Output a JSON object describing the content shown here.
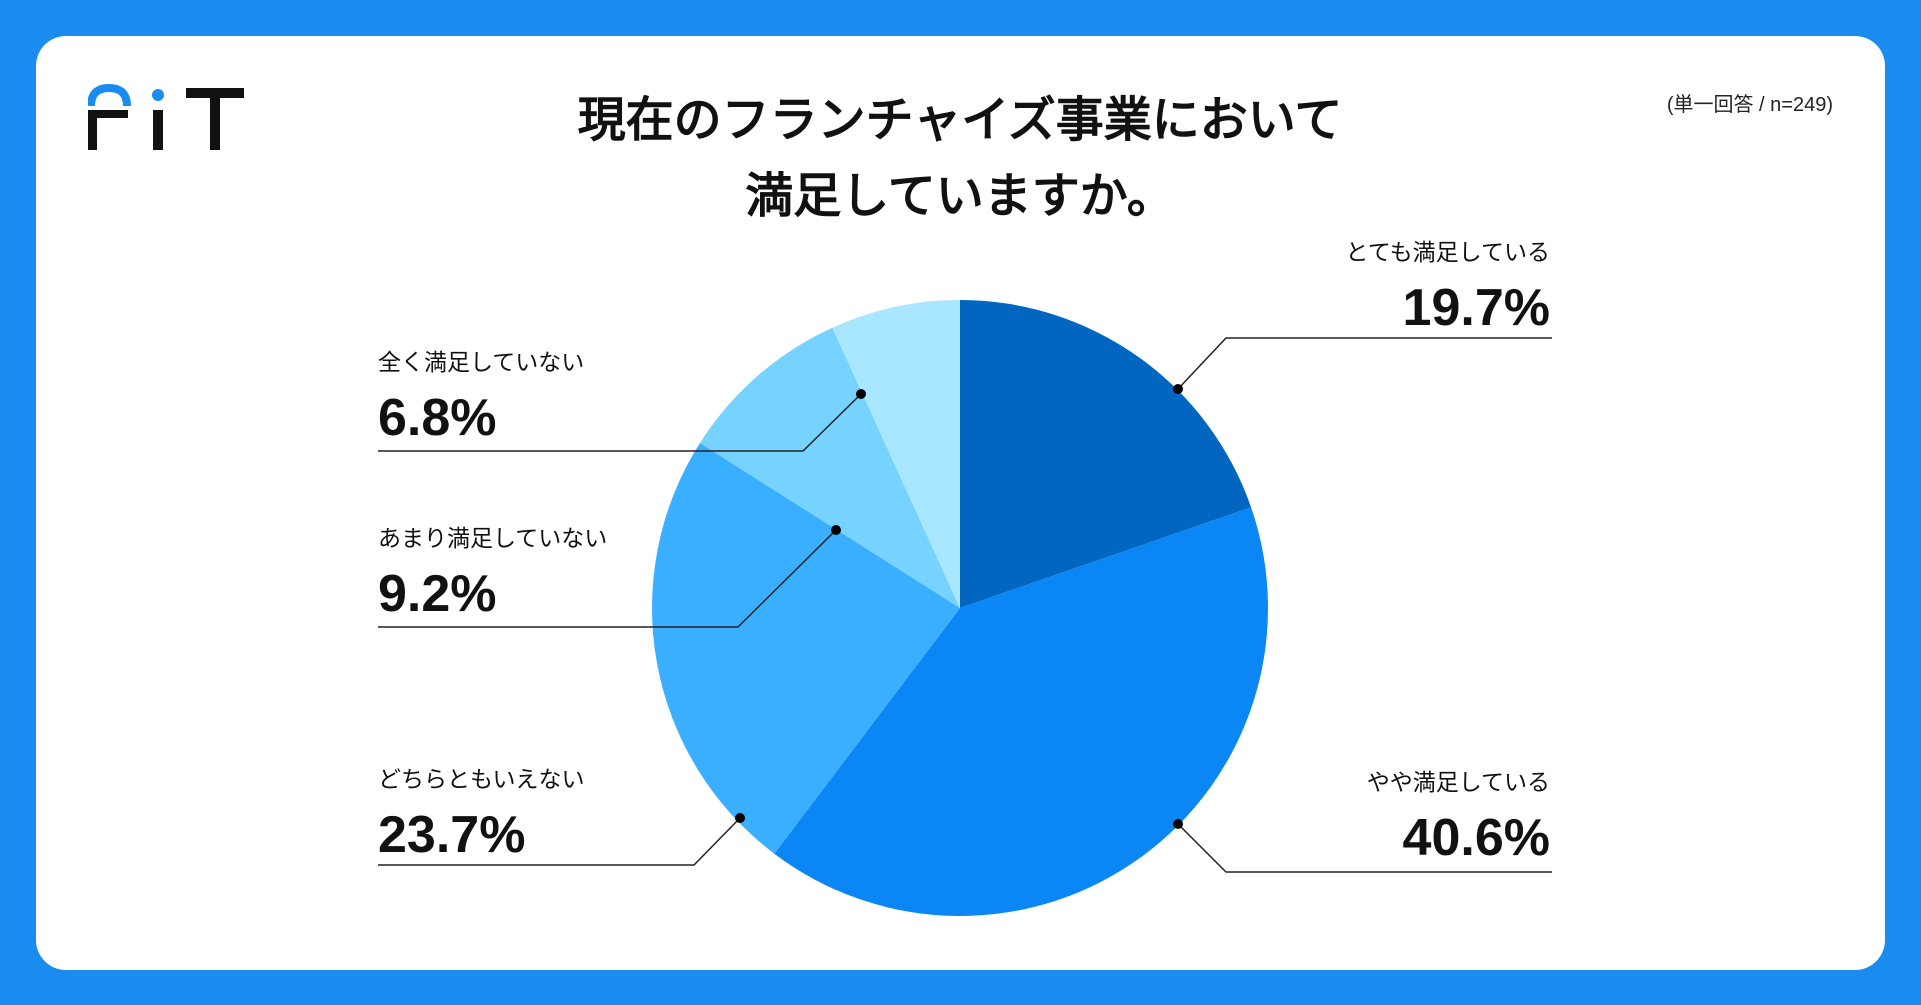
{
  "header": {
    "logo_text": "FiT",
    "title_line1": "現在のフランチャイズ事業において",
    "title_line2": "満足していますか。",
    "note": "(単一回答 / n=249)"
  },
  "colors": {
    "background": "#1a8cf0",
    "card": "#ffffff",
    "leader": "#222222",
    "logo_accent": "#1a8cf0",
    "logo_dark": "#111111"
  },
  "chart_data": {
    "type": "pie",
    "title": "現在のフランチャイズ事業において満足していますか。",
    "start": "12 o'clock",
    "direction": "clockwise",
    "slices": [
      {
        "label": "とても満足している",
        "value": 19.7,
        "display": "19.7%",
        "color": "#0066c0"
      },
      {
        "label": "やや満足している",
        "value": 40.6,
        "display": "40.6%",
        "color": "#0a87f5"
      },
      {
        "label": "どちらともいえない",
        "value": 23.7,
        "display": "23.7%",
        "color": "#3aaeff"
      },
      {
        "label": "あまり満足していない",
        "value": 9.2,
        "display": "9.2%",
        "color": "#76d2ff"
      },
      {
        "label": "全く満足していない",
        "value": 6.8,
        "display": "6.8%",
        "color": "#a8e7ff"
      }
    ]
  }
}
